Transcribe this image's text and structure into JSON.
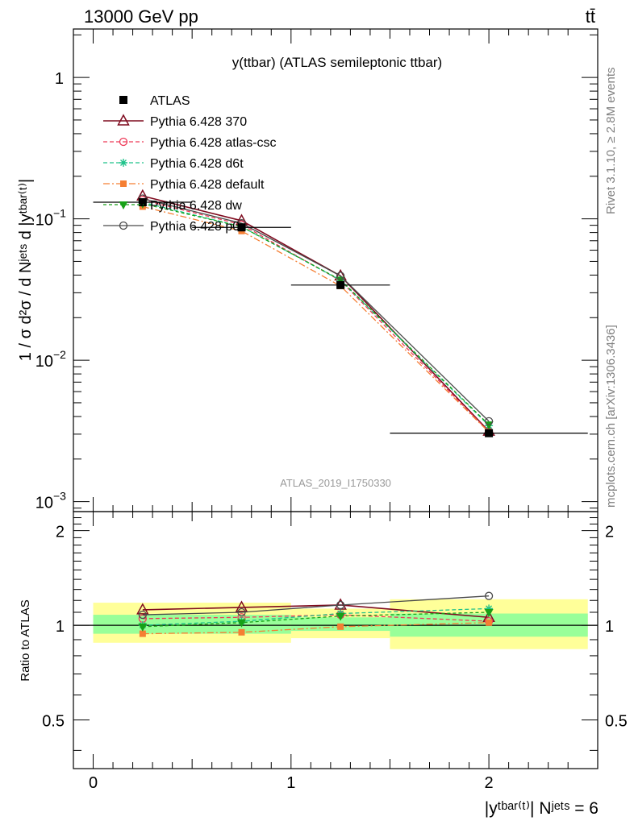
{
  "header": {
    "energy_label": "13000 GeV pp",
    "process_label": "tt̄"
  },
  "side_labels": {
    "rivet": "Rivet 3.1.10, ≥ 2.8M events",
    "mcplots": "mcplots.cern.ch [arXiv:1306.3436]"
  },
  "colors": {
    "atlas": "#000000",
    "py370": "#7f0b1f",
    "atlascsc": "#ee3a58",
    "d6t": "#1fc28a",
    "default": "#f57f33",
    "dw": "#17a117",
    "p0": "#4a4a4a",
    "band_inner": "#99ff99",
    "band_outer": "#ffff99"
  },
  "chart_data": [
    {
      "type": "line",
      "title": "y(ttbar) (ATLAS semileptonic ttbar)",
      "analysis_label": "ATLAS_2019_I1750330",
      "ylabel": "1 / σ d²σ / d Nʲᵉᵗˢ d |yᵗᵇᵃʳ⁽ᵗ⁾|",
      "yscale": "log",
      "ylim": [
        0.00085,
        2.2
      ],
      "xlim": [
        -0.1,
        2.55
      ],
      "y_ticks": [
        {
          "value": 0.001,
          "base": "10",
          "exp": "−3"
        },
        {
          "value": 0.01,
          "base": "10",
          "exp": "−2"
        },
        {
          "value": 0.1,
          "base": "10",
          "exp": "−1"
        },
        {
          "value": 1,
          "base": "1",
          "exp": ""
        }
      ],
      "legend_position": "top-left",
      "x": [
        0.25,
        0.75,
        1.25,
        2.0
      ],
      "data": {
        "name": "ATLAS",
        "values": [
          0.131,
          0.087,
          0.034,
          0.00305
        ],
        "bins": [
          [
            0,
            0.5
          ],
          [
            0.5,
            1.0
          ],
          [
            1.0,
            1.5
          ],
          [
            1.5,
            2.5
          ]
        ]
      },
      "series": [
        {
          "name": "Pythia 6.428 370",
          "key": "py370",
          "values": [
            0.145,
            0.097,
            0.0395,
            0.00315
          ]
        },
        {
          "name": "Pythia 6.428 atlas-csc",
          "key": "atlascsc",
          "values": [
            0.136,
            0.091,
            0.0365,
            0.00312
          ]
        },
        {
          "name": "Pythia 6.428 d6t",
          "key": "d6t",
          "values": [
            0.131,
            0.088,
            0.0368,
            0.00345
          ]
        },
        {
          "name": "Pythia 6.428 default",
          "key": "default",
          "values": [
            0.122,
            0.082,
            0.0335,
            0.0031
          ]
        },
        {
          "name": "Pythia 6.428 dw",
          "key": "dw",
          "values": [
            0.128,
            0.088,
            0.037,
            0.0035
          ]
        },
        {
          "name": "Pythia 6.428 p0",
          "key": "p0",
          "values": [
            0.139,
            0.093,
            0.0395,
            0.0037
          ]
        }
      ]
    },
    {
      "type": "line",
      "ylabel": "Ratio to ATLAS",
      "xlabel": "|yᵗᵇᵃʳ⁽ᵗ⁾| Nʲᵉᵗˢ = 6",
      "ylim": [
        0.35,
        2.3
      ],
      "xlim": [
        -0.1,
        2.55
      ],
      "x_ticks": [
        "0",
        "1",
        "2"
      ],
      "y_ticks": [
        "0.5",
        "1",
        "2"
      ],
      "bands": [
        {
          "x0": 0,
          "x1": 1.0,
          "inner": [
            0.94,
            1.08
          ],
          "outer": [
            0.88,
            1.18
          ]
        },
        {
          "x0": 1.0,
          "x1": 1.5,
          "inner": [
            0.96,
            1.06
          ],
          "outer": [
            0.91,
            1.13
          ]
        },
        {
          "x0": 1.5,
          "x1": 2.5,
          "inner": [
            0.92,
            1.09
          ],
          "outer": [
            0.84,
            1.21
          ]
        }
      ],
      "x": [
        0.25,
        0.75,
        1.25,
        2.0
      ],
      "series": [
        {
          "name": "Pythia 6.428 370",
          "key": "py370",
          "values": [
            1.12,
            1.14,
            1.16,
            1.06
          ]
        },
        {
          "name": "Pythia 6.428 atlas-csc",
          "key": "atlascsc",
          "values": [
            1.05,
            1.06,
            1.08,
            1.03
          ]
        },
        {
          "name": "Pythia 6.428 d6t",
          "key": "d6t",
          "values": [
            1.0,
            1.03,
            1.09,
            1.13
          ]
        },
        {
          "name": "Pythia 6.428 default",
          "key": "default",
          "values": [
            0.94,
            0.95,
            0.99,
            1.02
          ]
        },
        {
          "name": "Pythia 6.428 dw",
          "key": "dw",
          "values": [
            0.99,
            1.02,
            1.07,
            1.1
          ]
        },
        {
          "name": "Pythia 6.428 p0",
          "key": "p0",
          "values": [
            1.08,
            1.1,
            1.16,
            1.24
          ]
        }
      ]
    }
  ]
}
